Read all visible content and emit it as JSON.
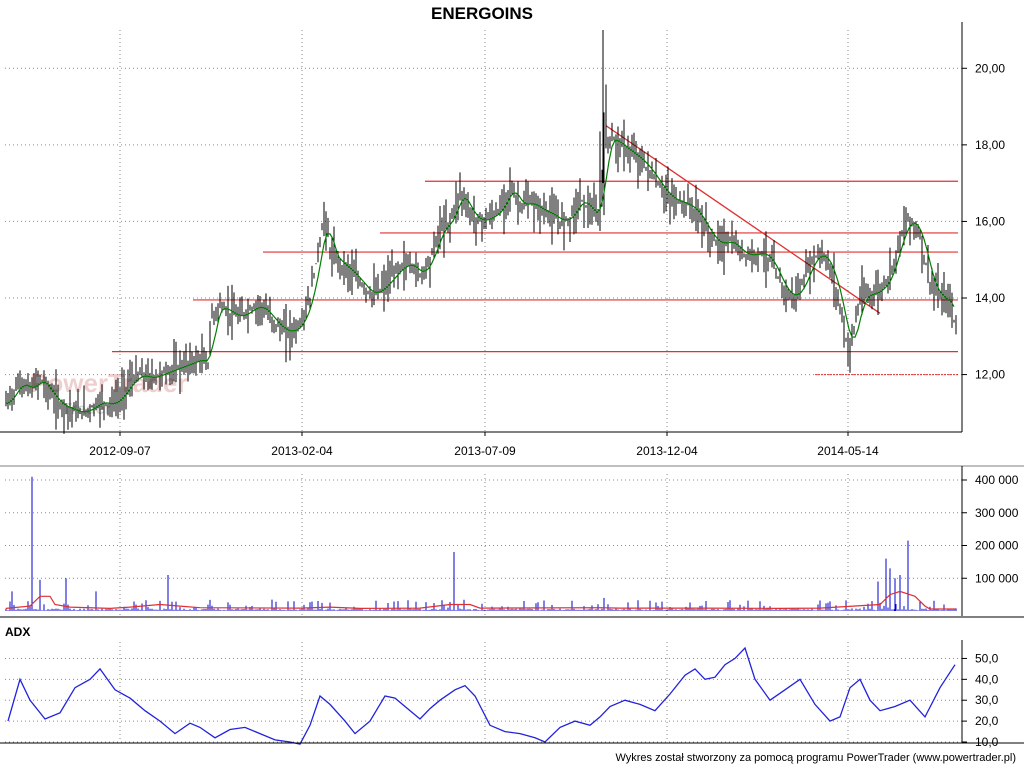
{
  "chart_data": [
    {
      "type": "candlestick",
      "title": "ENERGOINS",
      "x_tick_labels": [
        "2012-09-07",
        "2013-02-04",
        "2013-07-09",
        "2013-12-04",
        "2014-05-14"
      ],
      "y_tick_labels": [
        "12,00",
        "14,00",
        "16,00",
        "18,00",
        "20,00"
      ],
      "ylim": [
        10.5,
        21.0
      ],
      "grid": true,
      "series": [
        {
          "kind": "price",
          "points": [
            [
              0,
              11.0
            ],
            [
              10,
              11.4
            ],
            [
              20,
              11.8
            ],
            [
              30,
              11.6
            ],
            [
              40,
              11.9
            ],
            [
              50,
              11.5
            ],
            [
              60,
              11.2
            ],
            [
              70,
              11.1
            ],
            [
              80,
              11.0
            ],
            [
              90,
              11.1
            ],
            [
              100,
              11.3
            ],
            [
              110,
              11.2
            ],
            [
              120,
              11.4
            ],
            [
              130,
              11.8
            ],
            [
              140,
              12.0
            ],
            [
              150,
              11.9
            ],
            [
              160,
              12.0
            ],
            [
              170,
              12.1
            ],
            [
              180,
              12.2
            ],
            [
              190,
              12.3
            ],
            [
              200,
              12.4
            ],
            [
              208,
              12.3
            ],
            [
              212,
              13.5
            ],
            [
              220,
              13.8
            ],
            [
              230,
              13.6
            ],
            [
              240,
              13.5
            ],
            [
              250,
              13.7
            ],
            [
              260,
              13.8
            ],
            [
              270,
              13.5
            ],
            [
              280,
              13.2
            ],
            [
              290,
              13.1
            ],
            [
              300,
              13.3
            ],
            [
              310,
              14.0
            ],
            [
              320,
              15.5
            ],
            [
              325,
              16.2
            ],
            [
              330,
              15.2
            ],
            [
              340,
              14.9
            ],
            [
              350,
              14.7
            ],
            [
              360,
              14.4
            ],
            [
              370,
              14.1
            ],
            [
              380,
              14.2
            ],
            [
              390,
              14.5
            ],
            [
              400,
              14.8
            ],
            [
              410,
              14.9
            ],
            [
              420,
              14.6
            ],
            [
              430,
              15.0
            ],
            [
              440,
              15.8
            ],
            [
              450,
              16.0
            ],
            [
              460,
              16.8
            ],
            [
              470,
              16.2
            ],
            [
              480,
              16.0
            ],
            [
              490,
              16.1
            ],
            [
              500,
              16.3
            ],
            [
              510,
              16.9
            ],
            [
              520,
              16.4
            ],
            [
              530,
              16.5
            ],
            [
              540,
              16.3
            ],
            [
              550,
              16.2
            ],
            [
              560,
              16.0
            ],
            [
              570,
              16.1
            ],
            [
              580,
              16.6
            ],
            [
              590,
              16.3
            ],
            [
              598,
              16.1
            ],
            [
              605,
              18.0
            ],
            [
              610,
              18.2
            ],
            [
              620,
              18.0
            ],
            [
              630,
              17.8
            ],
            [
              640,
              17.6
            ],
            [
              650,
              17.3
            ],
            [
              660,
              16.9
            ],
            [
              670,
              16.6
            ],
            [
              680,
              16.5
            ],
            [
              690,
              16.4
            ],
            [
              700,
              16.1
            ],
            [
              710,
              15.6
            ],
            [
              720,
              15.4
            ],
            [
              730,
              15.5
            ],
            [
              740,
              15.2
            ],
            [
              750,
              15.1
            ],
            [
              760,
              15.2
            ],
            [
              770,
              15.0
            ],
            [
              780,
              14.4
            ],
            [
              790,
              14.0
            ],
            [
              800,
              14.2
            ],
            [
              810,
              14.9
            ],
            [
              820,
              15.2
            ],
            [
              830,
              14.8
            ],
            [
              840,
              13.8
            ],
            [
              848,
              12.6
            ],
            [
              855,
              13.3
            ],
            [
              860,
              14.0
            ],
            [
              870,
              14.1
            ],
            [
              880,
              14.2
            ],
            [
              890,
              14.6
            ],
            [
              900,
              15.6
            ],
            [
              910,
              16.1
            ],
            [
              920,
              15.6
            ],
            [
              930,
              14.4
            ],
            [
              940,
              14.0
            ],
            [
              950,
              13.9
            ],
            [
              956,
              13.2
            ]
          ]
        },
        {
          "name": "",
          "kind": "volume",
          "y_tick_labels": [
            "100 000",
            "200 000",
            "300 000",
            "400 000"
          ],
          "ylim": [
            0,
            400000
          ]
        },
        {
          "name": "ADX",
          "kind": "indicator",
          "y_tick_labels": [
            "10,0",
            "20,0",
            "30,0",
            "40,0",
            "50,0"
          ],
          "ylim": [
            10,
            55
          ],
          "points": [
            [
              8,
              20
            ],
            [
              20,
              40
            ],
            [
              30,
              30
            ],
            [
              45,
              21
            ],
            [
              60,
              24
            ],
            [
              75,
              36
            ],
            [
              90,
              40
            ],
            [
              100,
              45
            ],
            [
              115,
              35
            ],
            [
              130,
              31
            ],
            [
              145,
              25
            ],
            [
              160,
              20
            ],
            [
              175,
              14
            ],
            [
              190,
              19
            ],
            [
              200,
              17
            ],
            [
              215,
              12
            ],
            [
              230,
              16
            ],
            [
              245,
              17
            ],
            [
              260,
              14
            ],
            [
              275,
              11
            ],
            [
              290,
              10
            ],
            [
              300,
              9
            ],
            [
              310,
              18
            ],
            [
              320,
              32
            ],
            [
              330,
              28
            ],
            [
              345,
              20
            ],
            [
              355,
              14
            ],
            [
              370,
              20
            ],
            [
              385,
              32
            ],
            [
              395,
              31
            ],
            [
              405,
              27
            ],
            [
              420,
              21
            ],
            [
              430,
              26
            ],
            [
              440,
              30
            ],
            [
              455,
              35
            ],
            [
              465,
              37
            ],
            [
              475,
              32
            ],
            [
              490,
              18
            ],
            [
              505,
              15
            ],
            [
              520,
              14
            ],
            [
              535,
              12
            ],
            [
              545,
              10
            ],
            [
              560,
              17
            ],
            [
              575,
              20
            ],
            [
              590,
              18
            ],
            [
              600,
              22
            ],
            [
              610,
              27
            ],
            [
              625,
              30
            ],
            [
              640,
              28
            ],
            [
              655,
              25
            ],
            [
              670,
              33
            ],
            [
              685,
              42
            ],
            [
              695,
              45
            ],
            [
              705,
              40
            ],
            [
              715,
              41
            ],
            [
              725,
              47
            ],
            [
              735,
              50
            ],
            [
              745,
              55
            ],
            [
              755,
              40
            ],
            [
              770,
              30
            ],
            [
              785,
              35
            ],
            [
              800,
              40
            ],
            [
              815,
              28
            ],
            [
              830,
              20
            ],
            [
              840,
              22
            ],
            [
              850,
              36
            ],
            [
              860,
              40
            ],
            [
              870,
              30
            ],
            [
              880,
              25
            ],
            [
              895,
              27
            ],
            [
              910,
              30
            ],
            [
              925,
              22
            ],
            [
              940,
              36
            ],
            [
              955,
              47
            ]
          ]
        }
      ],
      "overlays": {
        "trendline_color": "#e03030",
        "support_levels": [
          12.6,
          13.95,
          15.2,
          15.7,
          17.05
        ],
        "close_color": "#000000",
        "ma_color": "#008000",
        "volume_color": "#0000cc",
        "volume_ma_color": "#e03030",
        "adx_color": "#2222dd"
      }
    }
  ],
  "panels": {
    "indicator_title": "ADX"
  },
  "watermark": {
    "line1": "PowerTrader",
    "line2": "Trader"
  },
  "footer": "Wykres został stworzony za pomocą programu PowerTrader (www.powertrader.pl)"
}
